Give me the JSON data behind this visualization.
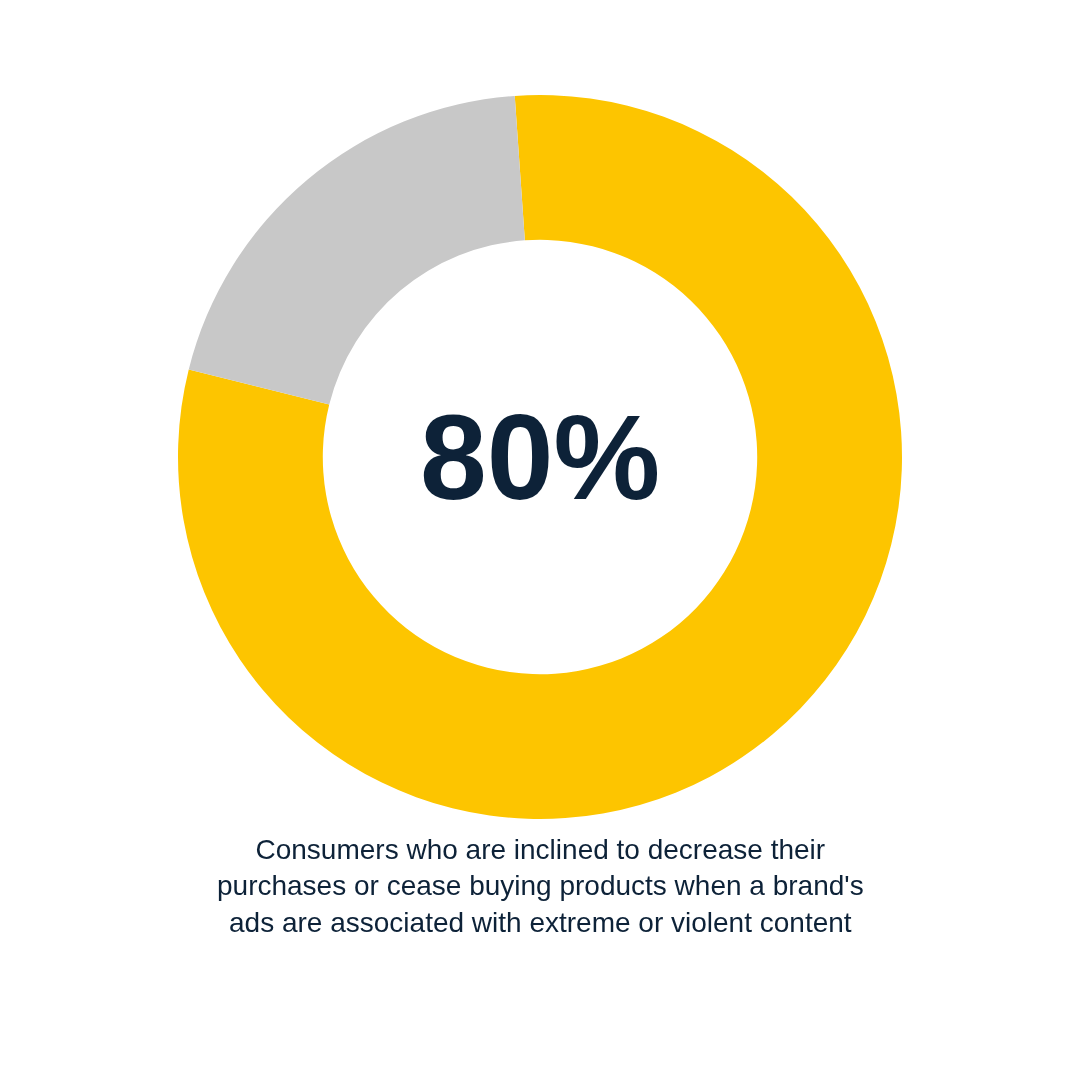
{
  "chart_data": {
    "type": "donut",
    "categories": [
      null,
      null
    ],
    "values": [
      80,
      20
    ],
    "colors": [
      "#fdc500",
      "#c8c8c8"
    ],
    "legend": false,
    "annotations": [
      "80%",
      "Consumers who are inclined to decrease their\npurchases or cease buying products when a brand's\nads are associated with extreme or violent content"
    ]
  }
}
